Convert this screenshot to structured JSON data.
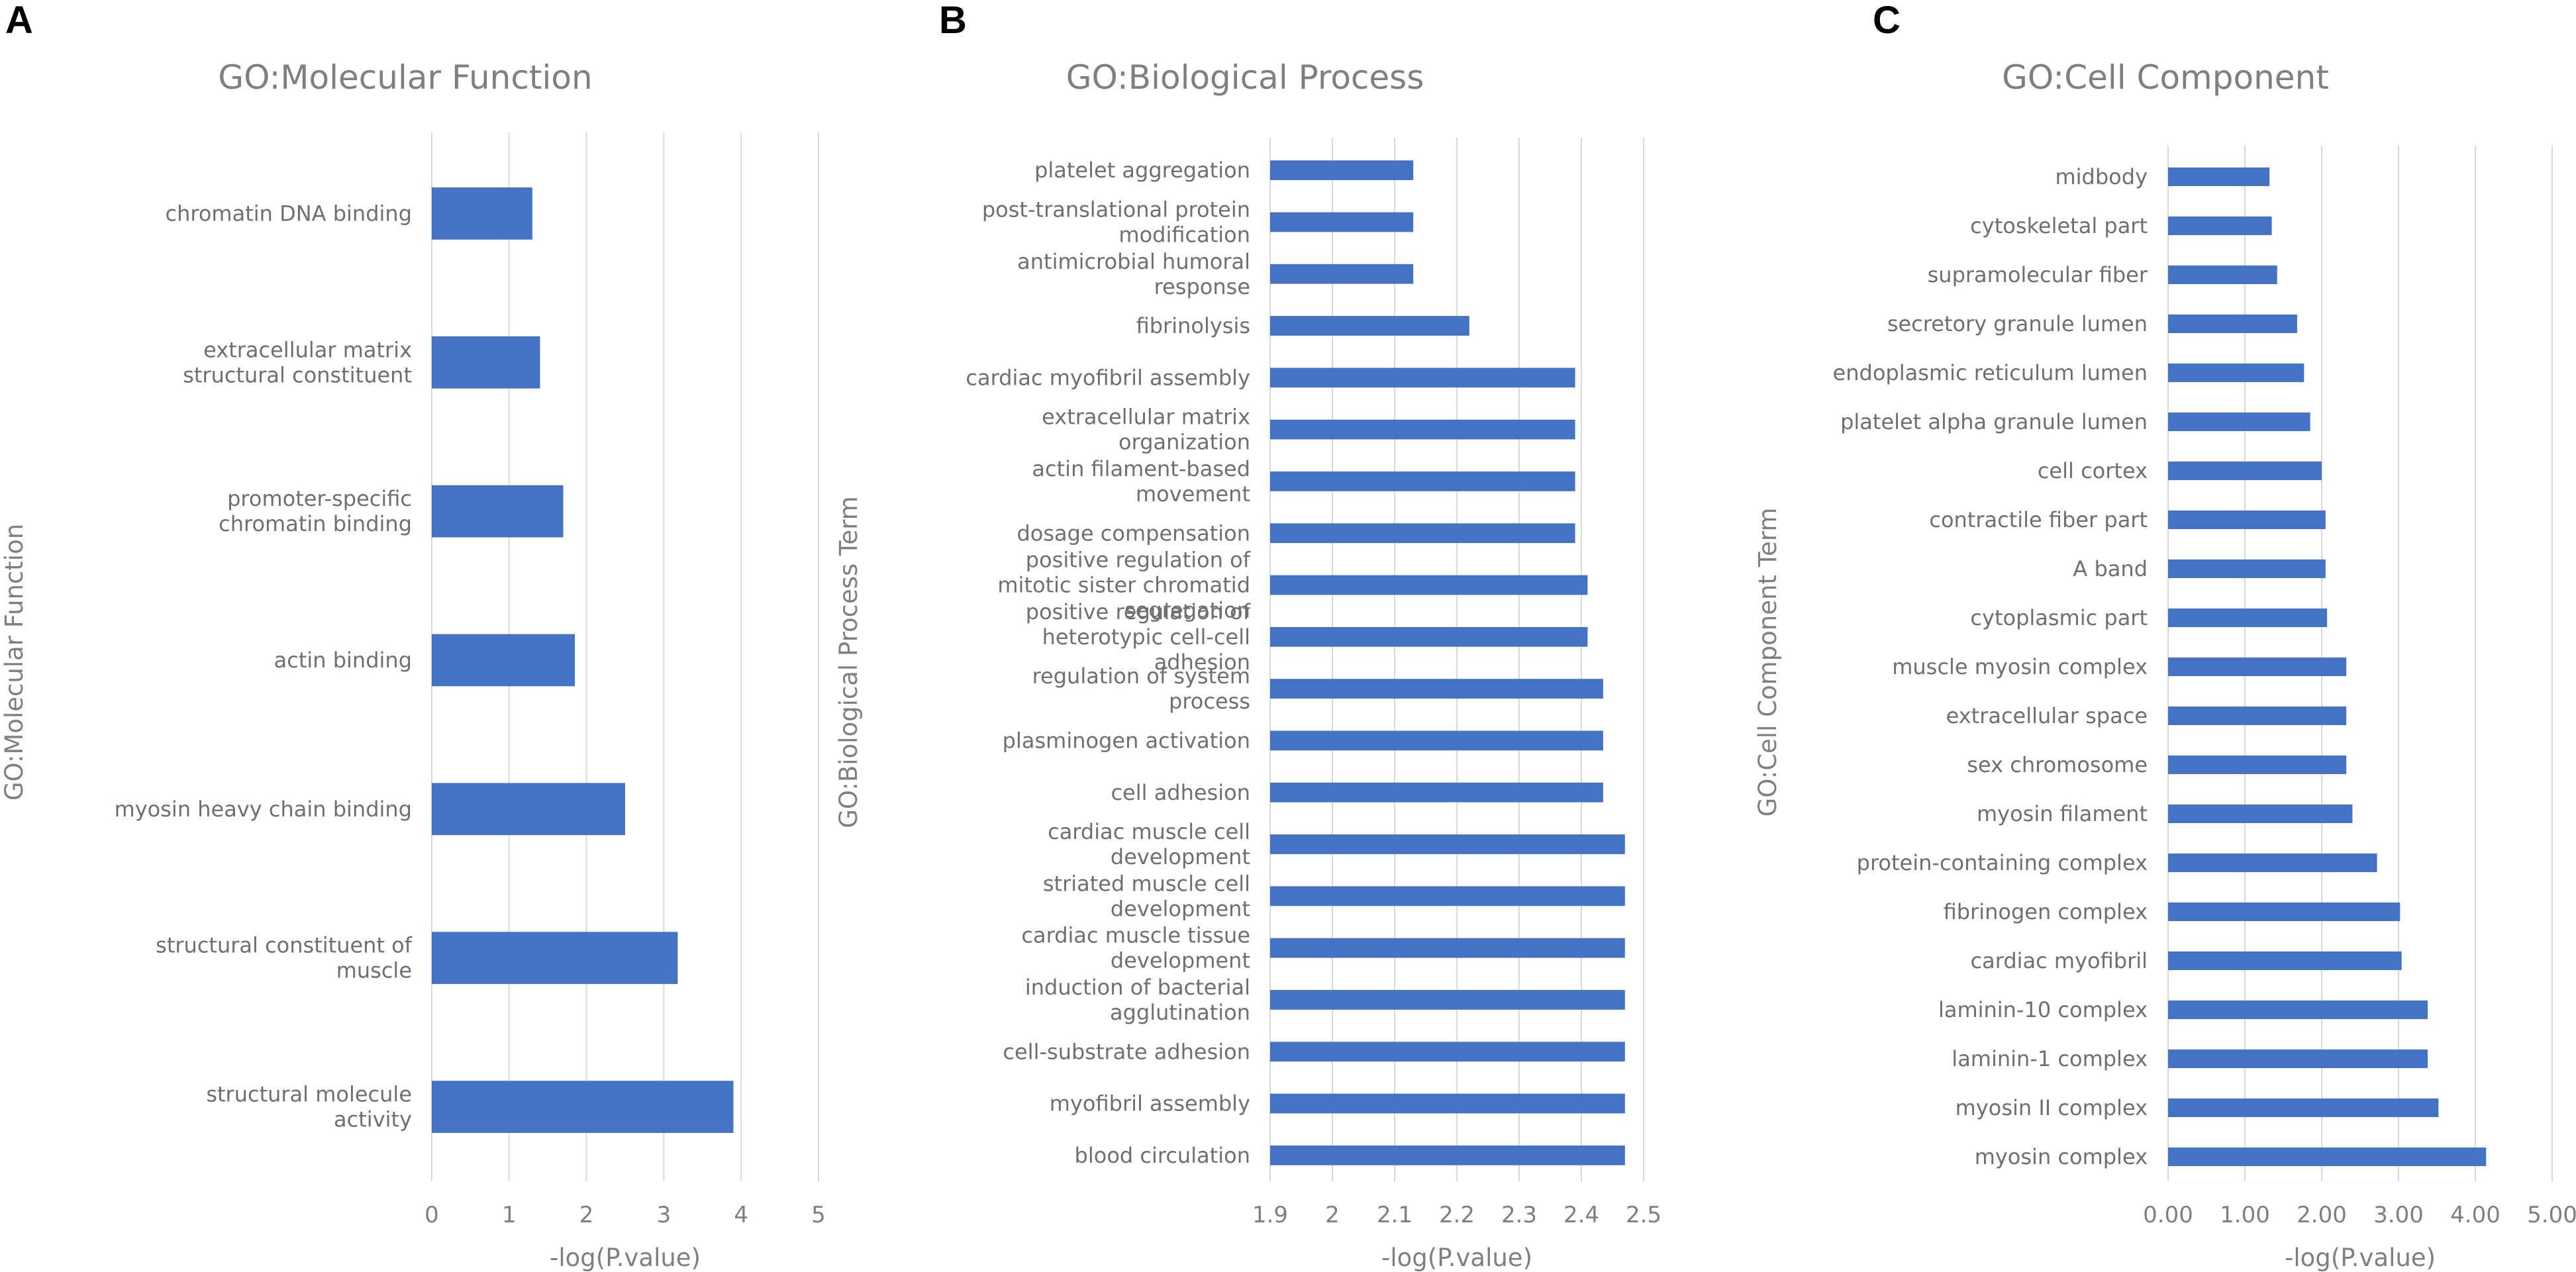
{
  "figure": {
    "panels": [
      "A",
      "B",
      "C"
    ]
  },
  "chart_data": [
    {
      "type": "bar",
      "orientation": "horizontal",
      "panel": "A",
      "title": "GO:Molecular Function",
      "xlabel": "-log(P.value)",
      "ylabel": "GO:Molecular Function",
      "xlim": [
        0,
        5
      ],
      "xticks": [
        "0",
        "1",
        "2",
        "3",
        "4",
        "5"
      ],
      "grid": true,
      "color": "#4472C4",
      "categories": [
        "chromatin DNA binding",
        "extracellular matrix structural constituent",
        "promoter-specific chromatin binding",
        "actin binding",
        "myosin heavy chain binding",
        "structural constituent of muscle",
        "structural molecule activity"
      ],
      "values": [
        1.3,
        1.4,
        1.7,
        1.85,
        2.5,
        3.18,
        3.9
      ]
    },
    {
      "type": "bar",
      "orientation": "horizontal",
      "panel": "B",
      "title": "GO:Biological Process",
      "xlabel": "-log(P.value)",
      "ylabel": "GO:Biological Process Term",
      "xlim": [
        1.9,
        2.5
      ],
      "xticks": [
        "1.9",
        "2",
        "2.1",
        "2.2",
        "2.3",
        "2.4",
        "2.5"
      ],
      "grid": true,
      "color": "#4472C4",
      "categories": [
        "platelet aggregation",
        "post-translational protein modification",
        "antimicrobial humoral response",
        "fibrinolysis",
        "cardiac myofibril assembly",
        "extracellular matrix organization",
        "actin filament-based movement",
        "dosage compensation",
        "positive regulation of mitotic sister chromatid segregation",
        "positive regulation of heterotypic cell-cell adhesion",
        "regulation of system process",
        "plasminogen activation",
        "cell adhesion",
        "cardiac muscle cell development",
        "striated muscle cell development",
        "cardiac muscle tissue development",
        "induction of bacterial agglutination",
        "cell-substrate adhesion",
        "myofibril assembly",
        "blood circulation"
      ],
      "values": [
        2.13,
        2.13,
        2.13,
        2.22,
        2.39,
        2.39,
        2.39,
        2.39,
        2.41,
        2.41,
        2.435,
        2.435,
        2.435,
        2.47,
        2.47,
        2.47,
        2.47,
        2.47,
        2.47,
        2.47
      ]
    },
    {
      "type": "bar",
      "orientation": "horizontal",
      "panel": "C",
      "title": "GO:Cell Component",
      "xlabel": "-log(P.value)",
      "ylabel": "GO:Cell Component Term",
      "xlim": [
        0,
        5
      ],
      "xticks": [
        "0.00",
        "1.00",
        "2.00",
        "3.00",
        "4.00",
        "5.00"
      ],
      "grid": true,
      "color": "#4472C4",
      "categories": [
        "midbody",
        "cytoskeletal part",
        "supramolecular fiber",
        "secretory granule lumen",
        "endoplasmic reticulum lumen",
        "platelet alpha granule lumen",
        "cell cortex",
        "contractile fiber part",
        "A band",
        "cytoplasmic part",
        "muscle myosin complex",
        "extracellular space",
        "sex chromosome",
        "myosin filament",
        "protein-containing complex",
        "fibrinogen complex",
        "cardiac myofibril",
        "laminin-10 complex",
        "laminin-1 complex",
        "myosin II complex",
        "myosin complex"
      ],
      "values": [
        1.32,
        1.35,
        1.42,
        1.68,
        1.77,
        1.85,
        2.0,
        2.05,
        2.05,
        2.07,
        2.32,
        2.32,
        2.32,
        2.4,
        2.72,
        3.02,
        3.04,
        3.38,
        3.38,
        3.52,
        4.14
      ]
    }
  ]
}
